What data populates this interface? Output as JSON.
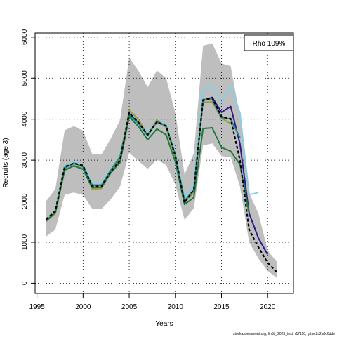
{
  "chart_data": {
    "type": "line",
    "xlabel": "Years",
    "ylabel": "Recruits (age 3)",
    "xlim": [
      1994.8,
      2022.8
    ],
    "ylim": [
      -250,
      6100
    ],
    "xticks": [
      1995,
      2000,
      2005,
      2010,
      2015,
      2020
    ],
    "yticks": [
      0,
      1000,
      2000,
      3000,
      4000,
      5000,
      6000
    ],
    "grid": true,
    "legend": {
      "placement": "top-right",
      "text": "Rho 109%"
    },
    "credit": "stockassessment.org, lin5b_2023_test, r17110, git:ec2c2a0c6dde",
    "colors": {
      "band": "#bebebe",
      "base": "#000000",
      "navy": "#2e1a87",
      "skyblue": "#87ceeb",
      "olive": "#a09a3c",
      "teal": "#1a8a8a",
      "green": "#1f7a3f"
    },
    "band": {
      "x": [
        1996,
        1997,
        1998,
        1999,
        2000,
        2001,
        2002,
        2003,
        2004,
        2005,
        2006,
        2007,
        2008,
        2009,
        2010,
        2011,
        2012,
        2013,
        2014,
        2015,
        2016,
        2017,
        2018,
        2019,
        2020,
        2021
      ],
      "upper": [
        2000,
        2300,
        3730,
        3830,
        3720,
        3140,
        3140,
        3530,
        3970,
        5500,
        5180,
        4780,
        5190,
        5000,
        4150,
        2650,
        3170,
        5790,
        5850,
        5360,
        5290,
        4060,
        2200,
        1700,
        800,
        520
      ],
      "lower": [
        1140,
        1310,
        2160,
        2210,
        2150,
        1810,
        1810,
        2050,
        2350,
        3180,
        2980,
        2790,
        3010,
        2880,
        2400,
        1540,
        1830,
        3360,
        3410,
        3100,
        3070,
        2360,
        1000,
        600,
        300,
        130
      ]
    },
    "series": [
      {
        "color": "base",
        "dashed": true,
        "x": [
          1996,
          1997,
          1998,
          1999,
          2000,
          2001,
          2002,
          2003,
          2004,
          2005,
          2006,
          2007,
          2008,
          2009,
          2010,
          2011,
          2012,
          2013,
          2014,
          2015,
          2016,
          2017,
          2018,
          2019,
          2020,
          2021
        ],
        "values": [
          1560,
          1760,
          2840,
          2920,
          2870,
          2360,
          2360,
          2720,
          2990,
          4150,
          3920,
          3620,
          3930,
          3830,
          3100,
          1960,
          2280,
          4460,
          4520,
          4060,
          4010,
          3000,
          1300,
          880,
          500,
          270
        ]
      },
      {
        "color": "navy",
        "x": [
          1996,
          1997,
          1998,
          1999,
          2000,
          2001,
          2002,
          2003,
          2004,
          2005,
          2006,
          2007,
          2008,
          2009,
          2010,
          2011,
          2012,
          2013,
          2014,
          2015,
          2016,
          2017,
          2018,
          2019,
          2020
        ],
        "values": [
          1560,
          1760,
          2840,
          2920,
          2870,
          2390,
          2390,
          2720,
          2990,
          4150,
          3920,
          3620,
          3930,
          3830,
          3100,
          1960,
          2280,
          4460,
          4530,
          4170,
          4310,
          3400,
          1700,
          1100,
          700
        ]
      },
      {
        "color": "skyblue",
        "x": [
          1996,
          1997,
          1998,
          1999,
          2000,
          2001,
          2002,
          2003,
          2004,
          2005,
          2006,
          2007,
          2008,
          2009,
          2010,
          2011,
          2012,
          2013,
          2014,
          2015,
          2016,
          2017,
          2018,
          2019
        ],
        "values": [
          1560,
          1760,
          2850,
          2950,
          2880,
          2440,
          2440,
          2780,
          3050,
          4180,
          3960,
          3680,
          3960,
          3880,
          3160,
          2080,
          2380,
          4680,
          4820,
          4400,
          4820,
          4150,
          2160,
          2210
        ]
      },
      {
        "color": "olive",
        "x": [
          1996,
          1997,
          1998,
          1999,
          2000,
          2001,
          2002,
          2003,
          2004,
          2005,
          2006,
          2007,
          2008,
          2009,
          2010,
          2011,
          2012,
          2013,
          2014,
          2015,
          2016
        ],
        "values": [
          1510,
          1700,
          2750,
          2870,
          2800,
          2290,
          2310,
          2710,
          3030,
          4210,
          4000,
          3610,
          3980,
          3800,
          3060,
          2000,
          2200,
          4420,
          4420,
          4020,
          3890
        ]
      },
      {
        "color": "teal",
        "x": [
          1996,
          1997,
          1998,
          1999,
          2000,
          2001,
          2002,
          2003,
          2004,
          2005,
          2006,
          2007,
          2008,
          2009,
          2010,
          2011,
          2012,
          2013,
          2014,
          2015,
          2016,
          2017
        ],
        "values": [
          1530,
          1730,
          2800,
          2930,
          2840,
          2380,
          2390,
          2760,
          3080,
          4100,
          3900,
          3600,
          3940,
          3840,
          3130,
          2010,
          2280,
          4480,
          4470,
          4040,
          4000,
          3550
        ]
      },
      {
        "color": "green",
        "x": [
          1996,
          1997,
          1998,
          1999,
          2000,
          2001,
          2002,
          2003,
          2004,
          2005,
          2006,
          2007,
          2008,
          2009,
          2010,
          2011,
          2012,
          2013,
          2014,
          2015,
          2016,
          2017,
          2018
        ],
        "values": [
          1520,
          1720,
          2760,
          2860,
          2780,
          2330,
          2340,
          2690,
          2940,
          4060,
          3820,
          3500,
          3760,
          3620,
          2960,
          1920,
          2090,
          3770,
          3790,
          3310,
          3220,
          2900,
          1700
        ]
      }
    ]
  }
}
